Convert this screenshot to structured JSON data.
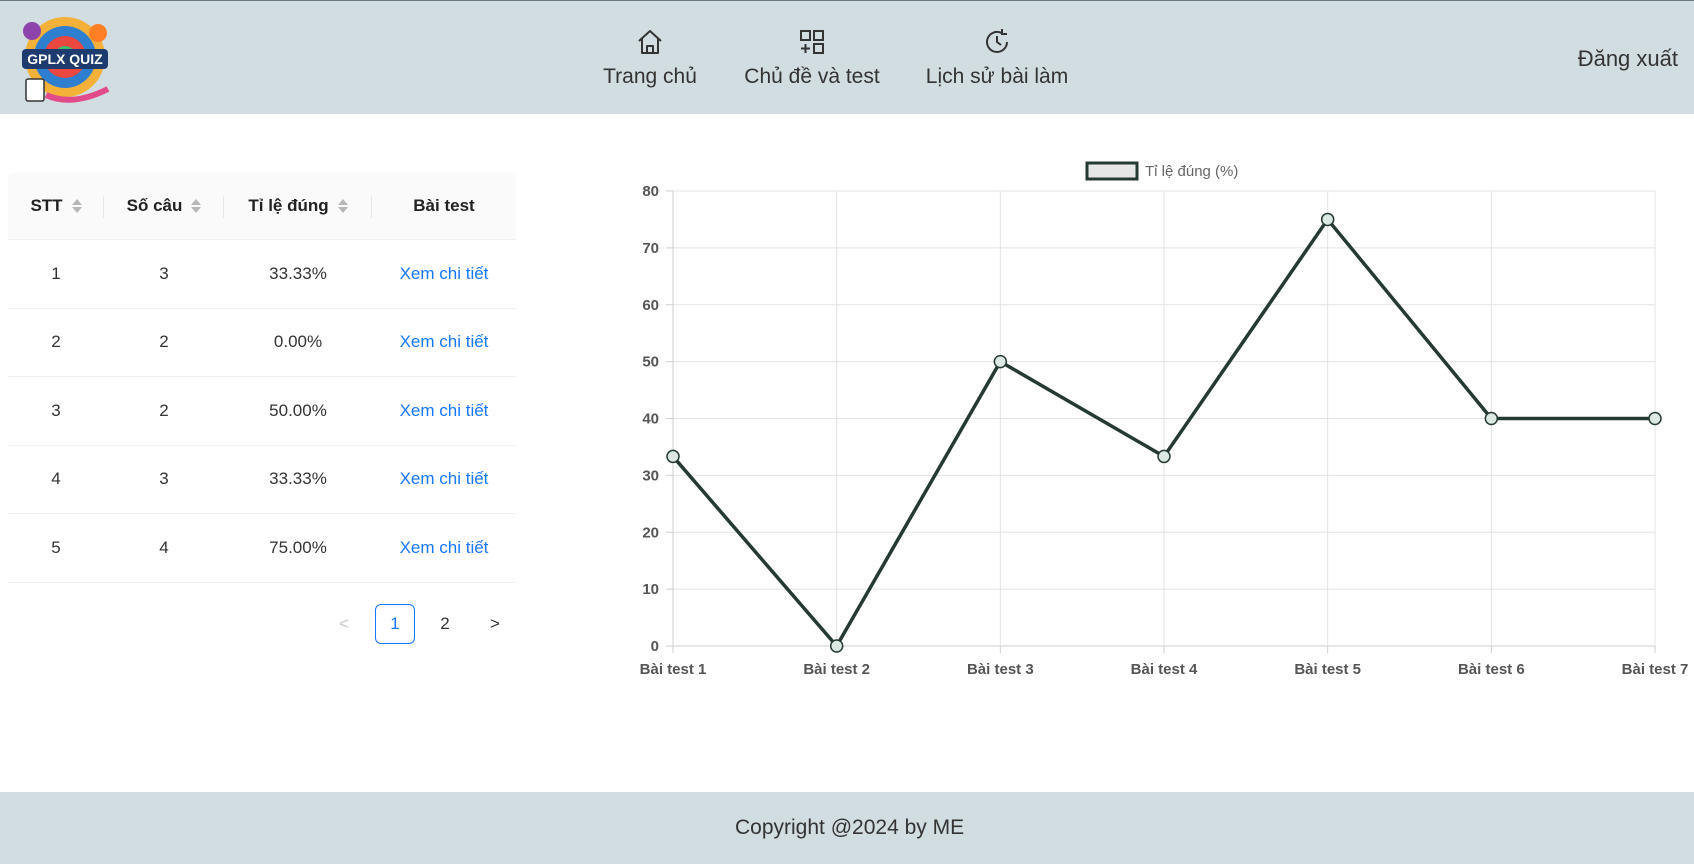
{
  "header": {
    "logo_text": "GPLX QUIZ",
    "nav": [
      {
        "label": "Trang chủ",
        "icon": "home-icon"
      },
      {
        "label": "Chủ đề và test",
        "icon": "grid-plus-icon"
      },
      {
        "label": "Lịch sử bài làm",
        "icon": "history-icon"
      }
    ],
    "logout_label": "Đăng xuất"
  },
  "table": {
    "columns": [
      "STT",
      "Số câu",
      "Tỉ lệ đúng",
      "Bài test"
    ],
    "rows": [
      {
        "stt": "1",
        "so_cau": "3",
        "ti_le": "33.33%",
        "link": "Xem chi tiết"
      },
      {
        "stt": "2",
        "so_cau": "2",
        "ti_le": "0.00%",
        "link": "Xem chi tiết"
      },
      {
        "stt": "3",
        "so_cau": "2",
        "ti_le": "50.00%",
        "link": "Xem chi tiết"
      },
      {
        "stt": "4",
        "so_cau": "3",
        "ti_le": "33.33%",
        "link": "Xem chi tiết"
      },
      {
        "stt": "5",
        "so_cau": "4",
        "ti_le": "75.00%",
        "link": "Xem chi tiết"
      }
    ]
  },
  "pagination": {
    "prev": "<",
    "pages": [
      "1",
      "2"
    ],
    "active": "1",
    "next": ">"
  },
  "chart_data": {
    "type": "line",
    "categories": [
      "Bài test 1",
      "Bài test 2",
      "Bài test 3",
      "Bài test 4",
      "Bài test 5",
      "Bài test 6",
      "Bài test 7"
    ],
    "series": [
      {
        "name": "Tỉ lệ đúng (%)",
        "values": [
          33.33,
          0,
          50,
          33.33,
          75,
          40,
          40
        ]
      }
    ],
    "ylim": [
      0,
      80
    ],
    "yticks": [
      0,
      10,
      20,
      30,
      40,
      50,
      60,
      70,
      80
    ],
    "grid": true,
    "legend": "top-center",
    "line_color": "#263a34",
    "point_fill": "#dbe9e2"
  },
  "footer": {
    "text": "Copyright @2024 by ME"
  },
  "colors": {
    "header_bg": "#d1dde1",
    "link": "#1677ff"
  }
}
